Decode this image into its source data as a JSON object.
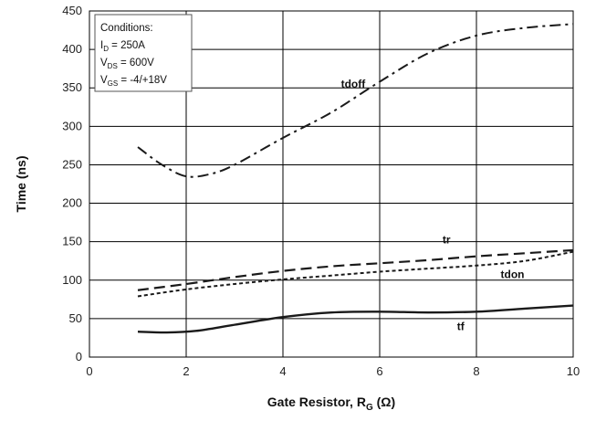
{
  "chart_data": {
    "type": "line",
    "title": "",
    "xlabel": "Gate Resistor, R",
    "xlabel_sub": "G",
    "xlabel_unit": " (Ω)",
    "ylabel": "Time (ns)",
    "xlim": [
      0,
      10
    ],
    "ylim": [
      0,
      450
    ],
    "xticks": [
      0,
      2,
      4,
      6,
      8,
      10
    ],
    "yticks": [
      0,
      50,
      100,
      150,
      200,
      250,
      300,
      350,
      400,
      450
    ],
    "grid": true,
    "conditions": {
      "heading": "Conditions:",
      "lines": [
        {
          "main": "I",
          "sub": "D",
          "rest": " = 250A"
        },
        {
          "main": "V",
          "sub": "DS",
          "rest": " = 600V"
        },
        {
          "main": "V",
          "sub": "GS",
          "rest": " = -4/+18V"
        }
      ]
    },
    "series": [
      {
        "name": "tdoff",
        "dash": "dashdot",
        "x": [
          1,
          1.5,
          2,
          2.5,
          3,
          4,
          5,
          6,
          7,
          8,
          9,
          10
        ],
        "y": [
          273,
          250,
          235,
          238,
          250,
          285,
          318,
          358,
          395,
          418,
          428,
          433
        ]
      },
      {
        "name": "tr",
        "dash": "dashed",
        "x": [
          1,
          2,
          3,
          4,
          5,
          6,
          7,
          8,
          9,
          10
        ],
        "y": [
          87,
          95,
          104,
          112,
          118,
          122,
          126,
          131,
          135,
          139
        ]
      },
      {
        "name": "tdon",
        "dash": "dotted",
        "x": [
          1,
          2,
          3,
          4,
          5,
          6,
          7,
          8,
          9,
          10
        ],
        "y": [
          79,
          88,
          95,
          101,
          106,
          111,
          115,
          119,
          125,
          137
        ]
      },
      {
        "name": "tf",
        "dash": "solid",
        "x": [
          1,
          1.6,
          2.2,
          3,
          4,
          5,
          6,
          7,
          8,
          9,
          10
        ],
        "y": [
          33,
          32,
          34,
          42,
          52,
          58,
          59,
          58,
          59,
          63,
          67
        ]
      }
    ]
  }
}
